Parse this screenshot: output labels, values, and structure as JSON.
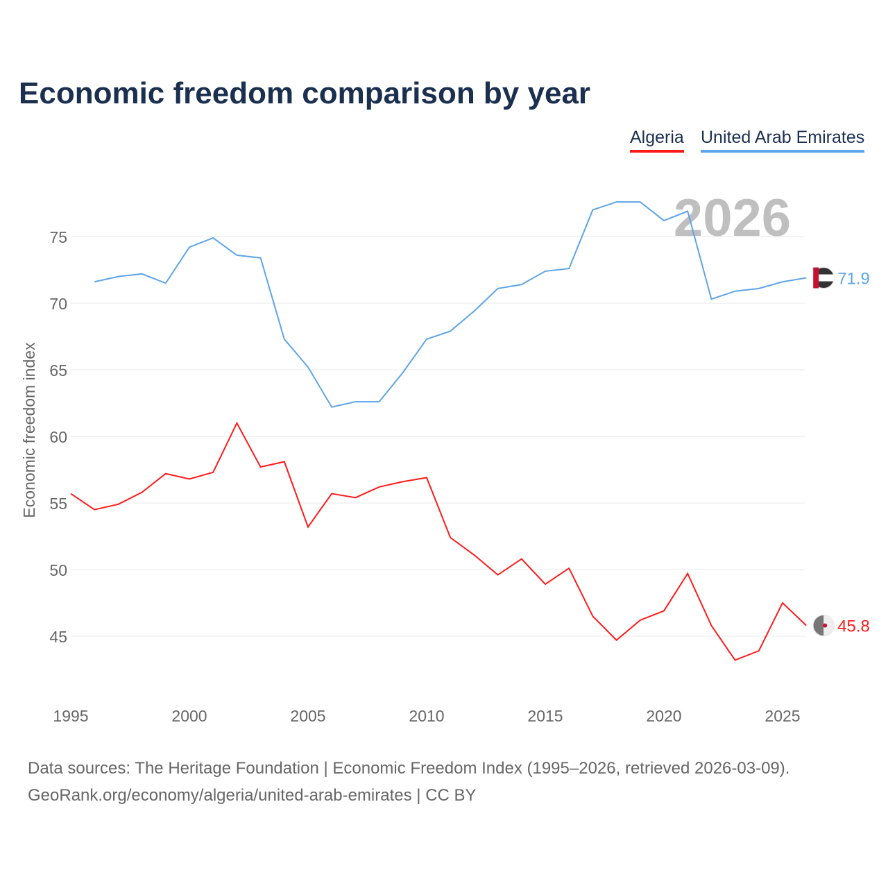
{
  "chart_data": {
    "type": "line",
    "title": "Economic freedom comparison by year",
    "xlabel": "",
    "ylabel": "Economic freedom index",
    "xlim": [
      1995,
      2026
    ],
    "ylim": [
      41,
      79
    ],
    "xticks": [
      "1995",
      "2000",
      "2005",
      "2010",
      "2015",
      "2020",
      "2025"
    ],
    "yticks": [
      "45",
      "50",
      "55",
      "60",
      "65",
      "70",
      "75"
    ],
    "grid": true,
    "legend_position": "top-right",
    "year_label": "2026",
    "series": [
      {
        "name": "Algeria",
        "color": "#ff1a1a",
        "end_label": "45.8",
        "x": [
          1995,
          1996,
          1997,
          1998,
          1999,
          2000,
          2001,
          2002,
          2003,
          2004,
          2005,
          2006,
          2007,
          2008,
          2009,
          2010,
          2011,
          2012,
          2013,
          2014,
          2015,
          2016,
          2017,
          2018,
          2019,
          2020,
          2021,
          2022,
          2023,
          2024,
          2025,
          2026
        ],
        "values": [
          55.7,
          54.5,
          54.9,
          55.8,
          57.2,
          56.8,
          57.3,
          61.0,
          57.7,
          58.1,
          53.2,
          55.7,
          55.4,
          56.2,
          56.6,
          56.9,
          52.4,
          51.1,
          49.6,
          50.8,
          48.9,
          50.1,
          46.5,
          44.7,
          46.2,
          46.9,
          49.7,
          45.8,
          43.2,
          43.9,
          47.5,
          45.8
        ]
      },
      {
        "name": "United Arab Emirates",
        "color": "#5ea4e8",
        "end_label": "71.9",
        "x": [
          1996,
          1997,
          1998,
          1999,
          2000,
          2001,
          2002,
          2003,
          2004,
          2005,
          2006,
          2007,
          2008,
          2009,
          2010,
          2011,
          2012,
          2013,
          2014,
          2015,
          2016,
          2017,
          2018,
          2019,
          2020,
          2021,
          2022,
          2023,
          2024,
          2025,
          2026
        ],
        "values": [
          71.6,
          72.0,
          72.2,
          71.5,
          74.2,
          74.9,
          73.6,
          73.4,
          67.3,
          65.2,
          62.2,
          62.6,
          62.6,
          64.8,
          67.3,
          67.9,
          69.4,
          71.1,
          71.4,
          72.4,
          72.6,
          77.0,
          77.6,
          77.6,
          76.2,
          76.9,
          70.3,
          70.9,
          71.1,
          71.6,
          71.9
        ]
      }
    ]
  },
  "source": {
    "line1": "Data sources: The Heritage Foundation | Economic Freedom Index (1995–2026, retrieved 2026-03-09).",
    "line2": "GeoRank.org/economy/algeria/united-arab-emirates | CC BY"
  }
}
